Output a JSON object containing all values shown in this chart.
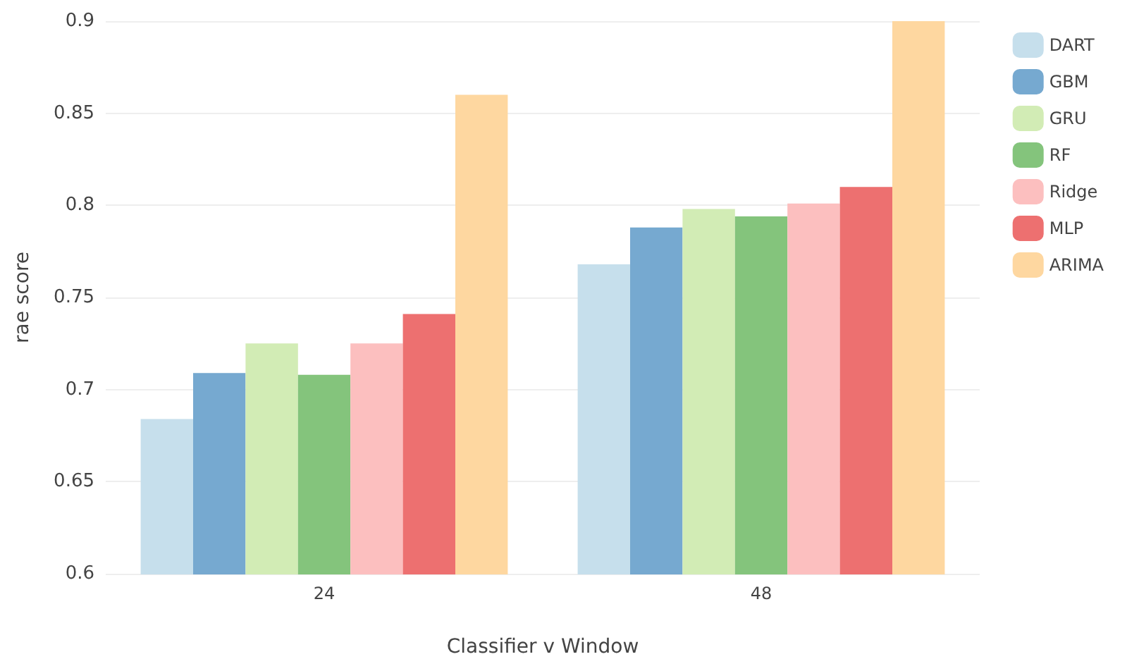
{
  "chart_data": {
    "type": "bar",
    "xlabel": "Classifier v Window",
    "ylabel": "rae score",
    "categories": [
      "24",
      "48"
    ],
    "series": [
      {
        "name": "DART",
        "color": "#c6dfec",
        "values": [
          0.684,
          0.768
        ]
      },
      {
        "name": "GBM",
        "color": "#76a9d0",
        "values": [
          0.709,
          0.788
        ]
      },
      {
        "name": "GRU",
        "color": "#d2ecb5",
        "values": [
          0.725,
          0.798
        ]
      },
      {
        "name": "RF",
        "color": "#84c47c",
        "values": [
          0.708,
          0.794
        ]
      },
      {
        "name": "Ridge",
        "color": "#fcbfbf",
        "values": [
          0.725,
          0.801
        ]
      },
      {
        "name": "MLP",
        "color": "#ed7070",
        "values": [
          0.741,
          0.81
        ]
      },
      {
        "name": "ARIMA",
        "color": "#fed7a0",
        "values": [
          0.86,
          0.9
        ]
      }
    ],
    "ylim": [
      0.6,
      0.9
    ],
    "yticks": [
      0.6,
      0.65,
      0.7,
      0.75,
      0.8,
      0.85,
      0.9
    ],
    "grid": "y",
    "legend": "top right"
  }
}
